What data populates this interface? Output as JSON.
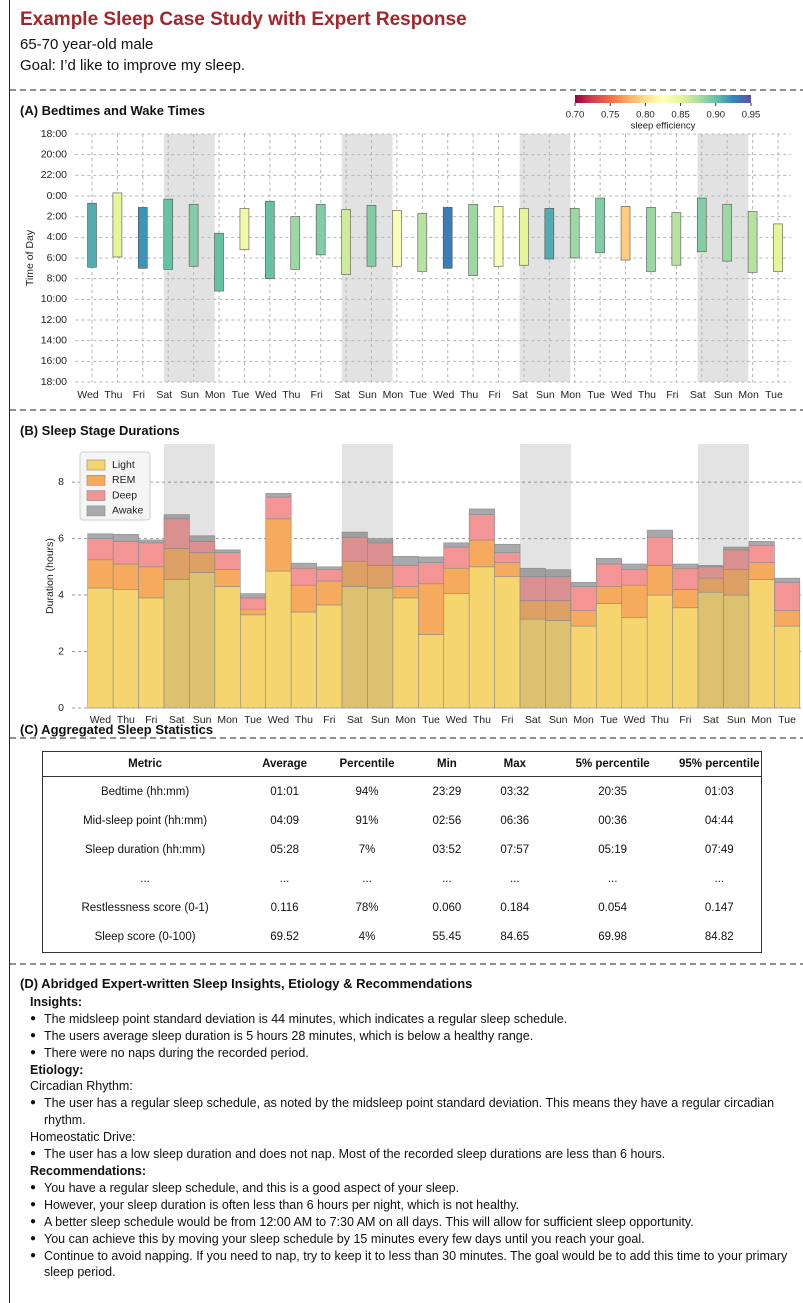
{
  "header": {
    "title": "Example Sleep Case Study with Expert Response",
    "subtitle": "65-70 year-old male",
    "goal": "Goal: I’d like to improve my sleep."
  },
  "chart_data": [
    {
      "type": "floating_bar",
      "title": "(A) Bedtimes and Wake Times",
      "ylabel": "Time of Day",
      "categories": [
        "Wed",
        "Thu",
        "Fri",
        "Sat",
        "Sun",
        "Mon",
        "Tue",
        "Wed",
        "Thu",
        "Fri",
        "Sat",
        "Sun",
        "Mon",
        "Tue",
        "Wed",
        "Thu",
        "Fri",
        "Sat",
        "Sun",
        "Mon",
        "Tue",
        "Wed",
        "Thu",
        "Fri",
        "Sat",
        "Sun",
        "Mon",
        "Tue"
      ],
      "start": [
        0.7,
        -0.3,
        1.1,
        0.3,
        0.8,
        3.6,
        1.2,
        0.5,
        2.0,
        0.8,
        1.3,
        0.9,
        1.4,
        1.7,
        1.1,
        0.8,
        1.0,
        1.2,
        1.2,
        1.2,
        0.2,
        1.0,
        1.1,
        1.6,
        0.2,
        0.8,
        1.5,
        2.7
      ],
      "end": [
        6.9,
        5.9,
        7.0,
        7.1,
        6.8,
        9.2,
        5.2,
        8.0,
        7.1,
        5.7,
        7.6,
        6.8,
        6.8,
        7.3,
        7.0,
        7.7,
        6.8,
        6.7,
        6.1,
        6.0,
        5.5,
        6.2,
        7.3,
        6.7,
        5.4,
        6.3,
        7.4,
        7.3
      ],
      "efficiency": [
        0.91,
        0.85,
        0.92,
        0.9,
        0.89,
        0.9,
        0.84,
        0.9,
        0.88,
        0.89,
        0.86,
        0.89,
        0.83,
        0.87,
        0.93,
        0.88,
        0.83,
        0.85,
        0.91,
        0.88,
        0.89,
        0.79,
        0.88,
        0.87,
        0.89,
        0.88,
        0.87,
        0.85
      ],
      "ylim": [
        -6,
        18
      ],
      "y_inverted": true,
      "yticks": [
        {
          "value": -6,
          "label": "18:00"
        },
        {
          "value": -4,
          "label": "20:00"
        },
        {
          "value": -2,
          "label": "22:00"
        },
        {
          "value": 0,
          "label": "0:00"
        },
        {
          "value": 2,
          "label": "2:00"
        },
        {
          "value": 4,
          "label": "4:00"
        },
        {
          "value": 6,
          "label": "6:00"
        },
        {
          "value": 8,
          "label": "8:00"
        },
        {
          "value": 10,
          "label": "10:00"
        },
        {
          "value": 12,
          "label": "12:00"
        },
        {
          "value": 14,
          "label": "14:00"
        },
        {
          "value": 16,
          "label": "16:00"
        },
        {
          "value": 18,
          "label": "18:00"
        }
      ],
      "grid": true,
      "highlight": [
        [
          3,
          4
        ],
        [
          10,
          11
        ],
        [
          17,
          18
        ],
        [
          24,
          25
        ]
      ],
      "colorbar": {
        "label": "sleep efficiency",
        "lim": [
          0.7,
          0.95
        ],
        "ticks": [
          {
            "value": 0.7,
            "label": "0.70"
          },
          0.75,
          {
            "value": 0.8,
            "label": "0.80"
          },
          0.85,
          {
            "value": 0.9,
            "label": "0.90"
          },
          0.95
        ],
        "colormap": [
          "#9e0142",
          "#d53e4f",
          "#f46d43",
          "#fdae61",
          "#fee08b",
          "#ffffbf",
          "#e6f598",
          "#abdda4",
          "#66c2a5",
          "#3288bd",
          "#5e4fa2"
        ]
      }
    },
    {
      "type": "stacked_bar",
      "title": "(B) Sleep Stage Durations",
      "ylabel": "Duration (hours)",
      "categories": [
        "Wed",
        "Thu",
        "Fri",
        "Sat",
        "Sun",
        "Mon",
        "Tue",
        "Wed",
        "Thu",
        "Fri",
        "Sat",
        "Sun",
        "Mon",
        "Tue",
        "Wed",
        "Thu",
        "Fri",
        "Sat",
        "Sun",
        "Mon",
        "Tue",
        "Wed",
        "Thu",
        "Fri",
        "Sat",
        "Sun",
        "Mon",
        "Tue"
      ],
      "series": [
        {
          "name": "Light",
          "color": "#f6d46e",
          "values": [
            4.25,
            4.2,
            3.9,
            4.55,
            4.8,
            4.3,
            3.3,
            4.85,
            3.4,
            3.65,
            4.3,
            4.25,
            3.9,
            2.6,
            4.05,
            5.0,
            4.65,
            3.15,
            3.1,
            2.9,
            3.7,
            3.2,
            4.0,
            3.55,
            4.1,
            4.0,
            4.55,
            2.9
          ]
        },
        {
          "name": "REM",
          "color": "#f6aa5d",
          "values": [
            1.0,
            0.9,
            1.1,
            1.1,
            0.7,
            0.6,
            0.2,
            1.85,
            0.95,
            0.85,
            0.9,
            0.8,
            0.4,
            1.8,
            0.9,
            0.95,
            0.5,
            0.65,
            0.7,
            0.55,
            0.6,
            1.15,
            1.05,
            0.65,
            0.5,
            0.9,
            0.6,
            0.55
          ]
        },
        {
          "name": "Deep",
          "color": "#f29594",
          "values": [
            0.75,
            0.8,
            0.85,
            1.05,
            0.4,
            0.6,
            0.4,
            0.77,
            0.6,
            0.4,
            0.85,
            0.8,
            0.75,
            0.75,
            0.75,
            0.9,
            0.35,
            0.85,
            0.85,
            0.85,
            0.8,
            0.55,
            1.0,
            0.75,
            0.4,
            0.7,
            0.6,
            1.0
          ]
        },
        {
          "name": "Awake",
          "color": "#a9a9ad",
          "values": [
            0.17,
            0.25,
            0.1,
            0.15,
            0.2,
            0.1,
            0.15,
            0.13,
            0.18,
            0.1,
            0.18,
            0.15,
            0.32,
            0.2,
            0.15,
            0.2,
            0.3,
            0.3,
            0.25,
            0.15,
            0.2,
            0.2,
            0.25,
            0.15,
            0.05,
            0.1,
            0.15,
            0.15
          ]
        }
      ],
      "ylim": [
        0,
        9.35
      ],
      "yticks": [
        0,
        2,
        4,
        6,
        8
      ],
      "grid": true,
      "legend": "upper left",
      "highlight": [
        [
          3,
          4
        ],
        [
          10,
          11
        ],
        [
          17,
          18
        ],
        [
          24,
          25
        ]
      ]
    }
  ],
  "table": {
    "title": "(C) Aggregated Sleep Statistics",
    "columns": [
      "Metric",
      "Average",
      "Percentile",
      "Min",
      "Max",
      "5% percentile",
      "95% percentile"
    ],
    "rows": [
      [
        "Bedtime (hh:mm)",
        "01:01",
        "94%",
        "23:29",
        "03:32",
        "20:35",
        "01:03"
      ],
      [
        "Mid-sleep point (hh:mm)",
        "04:09",
        "91%",
        "02:56",
        "06:36",
        "00:36",
        "04:44"
      ],
      [
        "Sleep duration (hh:mm)",
        "05:28",
        "7%",
        "03:52",
        "07:57",
        "05:19",
        "07:49"
      ],
      [
        "...",
        "...",
        "...",
        "...",
        "...",
        "...",
        "..."
      ],
      [
        "Restlessness score (0-1)",
        "0.116",
        "78%",
        "0.060",
        "0.184",
        "0.054",
        "0.147"
      ],
      [
        "Sleep score (0-100)",
        "69.52",
        "4%",
        "55.45",
        "84.65",
        "69.98",
        "84.82"
      ]
    ]
  },
  "insights": {
    "title": "(D) Abridged Expert-written Sleep Insights, Etiology & Recommendations",
    "blocks": [
      {
        "style": "bold",
        "text": "Insights:"
      },
      {
        "style": "bullet",
        "text": "The midsleep point standard deviation is 44 minutes, which indicates a regular sleep schedule."
      },
      {
        "style": "bullet",
        "text": "The users average sleep duration is 5 hours 28 minutes, which is below a healthy range."
      },
      {
        "style": "bullet",
        "text": "There were no naps during the recorded period."
      },
      {
        "style": "bold",
        "text": "Etiology:"
      },
      {
        "style": "plain",
        "text": "Circadian Rhythm:"
      },
      {
        "style": "bullet",
        "text": "The user has a regular sleep schedule, as noted by the midsleep point standard deviation. This means they have a regular circadian rhythm."
      },
      {
        "style": "plain",
        "text": "Homeostatic Drive:"
      },
      {
        "style": "bullet",
        "text": "The user has a low sleep duration and does not nap. Most of the recorded sleep durations are less than 6 hours."
      },
      {
        "style": "bold",
        "text": "Recommendations:"
      },
      {
        "style": "bullet",
        "text": "You have a regular sleep schedule, and this is a good aspect of your sleep."
      },
      {
        "style": "bullet",
        "text": "However, your sleep duration is often less than 6 hours per night, which is not healthy."
      },
      {
        "style": "bullet",
        "text": "A better sleep schedule would be from 12:00 AM to 7:30 AM on all days. This will allow for sufficient sleep opportunity."
      },
      {
        "style": "bullet",
        "text": "You can achieve this by moving your sleep schedule by 15 minutes every few days until you reach your goal."
      },
      {
        "style": "bullet",
        "text": "Continue to avoid napping. If you need to nap, try to keep it to less than 30 minutes. The goal would be to add this time to your primary sleep period."
      }
    ]
  }
}
